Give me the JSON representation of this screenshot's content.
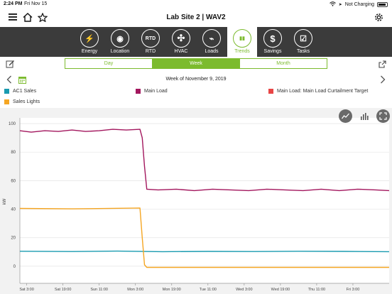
{
  "status_bar": {
    "time": "2:24 PM",
    "date": "Fri Nov 15",
    "charging": "Not Charging"
  },
  "header": {
    "title": "Lab Site 2 | WAV2",
    "icons": [
      "menu-icon",
      "home-icon",
      "star-icon",
      "gear-icon"
    ]
  },
  "nav": {
    "items": [
      {
        "label": "Energy",
        "glyph": "⚡",
        "icon": "energy-icon"
      },
      {
        "label": "Location",
        "glyph": "◉",
        "icon": "location-icon"
      },
      {
        "label": "RTD",
        "glyph": "RTD",
        "icon": "rtd-icon"
      },
      {
        "label": "HVAC",
        "glyph": "✣",
        "icon": "hvac-fan-icon"
      },
      {
        "label": "Loads",
        "glyph": "⌁",
        "icon": "loads-plug-icon"
      },
      {
        "label": "Trends",
        "glyph": "▮▮",
        "icon": "trends-bar-icon",
        "active": true
      },
      {
        "label": "Savings",
        "glyph": "$",
        "icon": "savings-dollar-icon"
      },
      {
        "label": "Tasks",
        "glyph": "☑",
        "icon": "tasks-checklist-icon"
      }
    ]
  },
  "range": {
    "options": [
      "Day",
      "Week",
      "Month"
    ],
    "selected": "Week"
  },
  "week_label": "Week of November 9, 2019",
  "accent": "#7cbb2e",
  "legend": [
    {
      "name": "AC1 Sales",
      "color": "#1a9bb0"
    },
    {
      "name": "Main Load",
      "color": "#a3175e"
    },
    {
      "name": "Main Load: Main Load Curtailment Target",
      "color": "#e84545"
    },
    {
      "name": "Sales Lights",
      "color": "#f5a623"
    }
  ],
  "chart_data": {
    "type": "line",
    "ylabel": "kW",
    "ylim": [
      -12,
      104
    ],
    "yticks": [
      0,
      20,
      40,
      60,
      80,
      100
    ],
    "xticks": [
      "Sat 3:00",
      "Sat 19:00",
      "Sun 11:00",
      "Mon 3:00",
      "Mon 19:00",
      "Tue 11:00",
      "Wed 3:00",
      "Wed 19:00",
      "Thu 11:00",
      "Fri 3:00"
    ],
    "x_range_hours": [
      -3,
      160
    ],
    "x_ticks_hours": [
      0,
      16,
      32,
      48,
      64,
      80,
      96,
      112,
      128,
      144
    ],
    "grid": "horizontal",
    "series": [
      {
        "name": "AC1 Sales",
        "color": "#1a9bb0",
        "x": [
          -3,
          20,
          40,
          60,
          80,
          100,
          120,
          140,
          160
        ],
        "y": [
          10.5,
          10.3,
          10.6,
          10.2,
          10.4,
          10.3,
          10.5,
          10.4,
          10.2
        ]
      },
      {
        "name": "Main Load",
        "color": "#a3175e",
        "x": [
          -3,
          2,
          8,
          14,
          20,
          26,
          32,
          38,
          44,
          50,
          51,
          52,
          53,
          58,
          66,
          74,
          82,
          90,
          98,
          106,
          114,
          122,
          130,
          138,
          146,
          154,
          160
        ],
        "y": [
          95,
          94,
          95,
          94.5,
          95.5,
          94.5,
          95,
          96,
          95.5,
          96,
          90,
          70,
          54,
          53.5,
          54,
          53,
          54,
          53.5,
          53,
          54,
          53.5,
          53,
          54,
          53,
          54,
          53.5,
          53
        ]
      },
      {
        "name": "Sales Lights",
        "color": "#f5a623",
        "x": [
          -3,
          20,
          50,
          51,
          52,
          53,
          80,
          120,
          160
        ],
        "y": [
          40.5,
          40.2,
          40.8,
          20,
          1,
          -0.8,
          -0.8,
          -0.8,
          -0.8
        ]
      }
    ]
  }
}
